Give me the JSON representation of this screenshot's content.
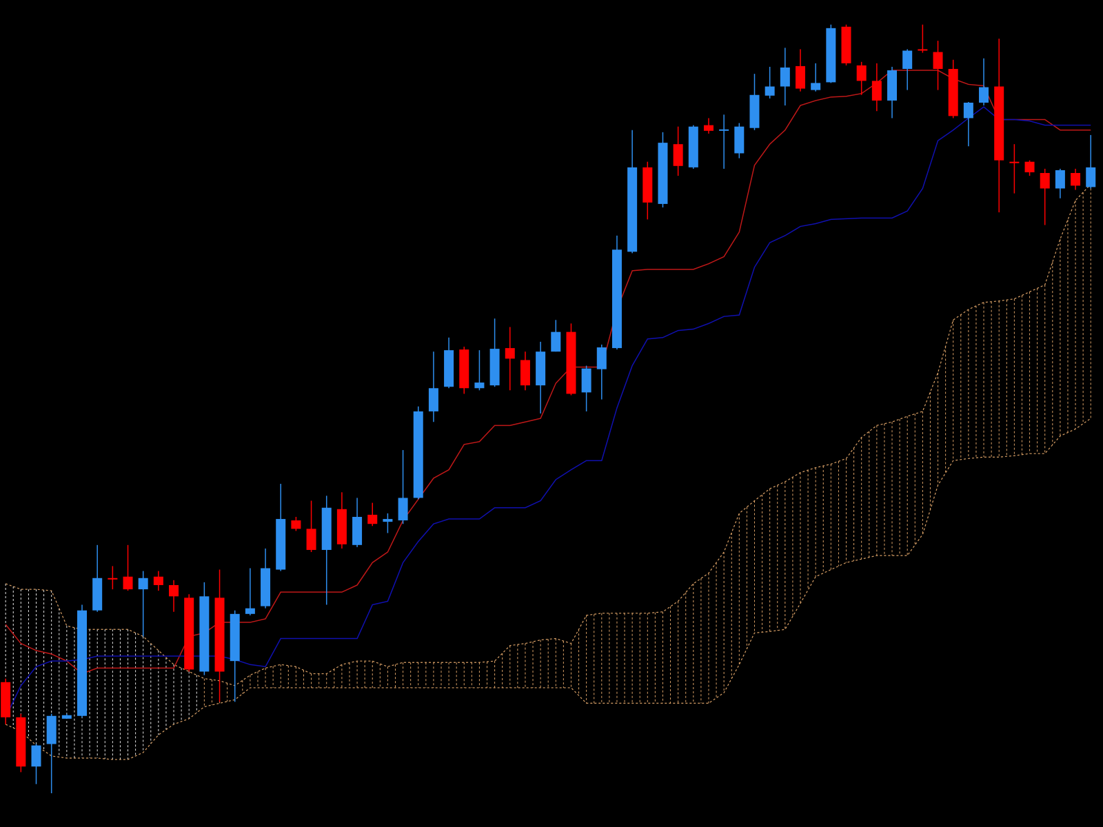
{
  "chart_data": {
    "type": "candlestick",
    "categories": [
      null,
      null,
      null,
      null,
      null,
      null,
      null,
      null,
      null,
      null,
      null,
      null,
      null,
      null,
      null,
      null,
      null,
      null,
      null,
      null,
      null,
      null,
      null,
      null,
      null,
      null,
      null,
      null,
      null,
      null,
      null,
      null,
      null,
      null,
      null,
      null,
      null,
      null,
      null,
      null,
      null,
      null,
      null,
      null,
      null,
      null,
      null,
      null,
      null,
      null,
      null,
      null,
      null,
      null,
      null,
      null,
      null,
      null,
      null,
      null,
      null,
      null,
      null,
      null,
      null,
      null,
      null,
      null,
      null,
      null,
      null,
      null
    ],
    "ylim": [
      0,
      1176
    ],
    "up_color": "#2e8ff0",
    "down_color": "#ff0000",
    "open": [
      206,
      156,
      86,
      118,
      154,
      158,
      308,
      354,
      356,
      338,
      356,
      344,
      326,
      221,
      326,
      236,
      303,
      314,
      366,
      436,
      424,
      394,
      452,
      401,
      444,
      434,
      436,
      468,
      591,
      626,
      679,
      624,
      628,
      681,
      664,
      628,
      676,
      704,
      618,
      651,
      681,
      818,
      938,
      886,
      971,
      938,
      998,
      990,
      958,
      994,
      1040,
      1053,
      1082,
      1048,
      1059,
      1138,
      1083,
      1061,
      1033,
      1078,
      1106,
      1102,
      1078,
      1008,
      1030,
      1053,
      946,
      946,
      930,
      908,
      930,
      910
    ],
    "high": [
      211,
      161,
      118,
      161,
      161,
      316,
      401,
      371,
      401,
      364,
      364,
      351,
      331,
      348,
      366,
      308,
      368,
      396,
      488,
      441,
      464,
      471,
      476,
      468,
      461,
      446,
      536,
      598,
      676,
      696,
      683,
      678,
      723,
      711,
      676,
      690,
      721,
      716,
      656,
      686,
      841,
      991,
      946,
      988,
      996,
      998,
      1008,
      1013,
      1001,
      1071,
      1081,
      1108,
      1106,
      1086,
      1141,
      1141,
      1088,
      1086,
      1081,
      1106,
      1141,
      1118,
      1091,
      1031,
      1093,
      1121,
      971,
      948,
      936,
      936,
      936,
      984
    ],
    "low": [
      146,
      78,
      61,
      48,
      154,
      156,
      306,
      338,
      336,
      271,
      336,
      306,
      221,
      216,
      178,
      178,
      301,
      311,
      364,
      421,
      391,
      316,
      396,
      398,
      428,
      418,
      431,
      466,
      576,
      624,
      616,
      621,
      626,
      621,
      621,
      588,
      676,
      614,
      591,
      608,
      679,
      816,
      864,
      881,
      926,
      936,
      986,
      936,
      951,
      991,
      1036,
      1026,
      1046,
      1046,
      1058,
      1083,
      1041,
      1018,
      1008,
      1048,
      1101,
      1048,
      1008,
      968,
      1026,
      874,
      901,
      926,
      856,
      894,
      906,
      908
    ],
    "close": [
      156,
      86,
      116,
      158,
      159,
      308,
      354,
      352,
      338,
      354,
      344,
      328,
      224,
      328,
      221,
      303,
      311,
      368,
      438,
      424,
      394,
      454,
      402,
      441,
      431,
      438,
      468,
      591,
      624,
      678,
      624,
      632,
      680,
      666,
      628,
      676,
      704,
      616,
      652,
      682,
      821,
      938,
      888,
      973,
      940,
      996,
      990,
      992,
      996,
      1041,
      1053,
      1080,
      1050,
      1058,
      1136,
      1086,
      1061,
      1033,
      1076,
      1104,
      1104,
      1078,
      1011,
      1030,
      1052,
      948,
      944,
      931,
      908,
      934,
      912,
      938
    ],
    "lines": [
      {
        "color": "#c01818",
        "values": [
          288,
          261,
          251,
          246,
          236,
          218,
          226,
          226,
          226,
          226,
          226,
          226,
          271,
          276,
          291,
          291,
          291,
          296,
          334,
          334,
          334,
          334,
          334,
          344,
          376,
          391,
          436,
          466,
          496,
          508,
          544,
          548,
          571,
          571,
          576,
          581,
          631,
          654,
          654,
          654,
          736,
          791,
          793,
          793,
          793,
          793,
          801,
          811,
          846,
          941,
          971,
          991,
          1026,
          1033,
          1038,
          1039,
          1043,
          1058,
          1076,
          1076,
          1076,
          1076,
          1064,
          1056,
          1054,
          1006,
          1006,
          1006,
          1006,
          991,
          991,
          991
        ]
      },
      {
        "color": "#1010b0",
        "values": [
          156,
          201,
          228,
          236,
          236,
          238,
          243,
          243,
          243,
          243,
          243,
          243,
          243,
          243,
          243,
          238,
          231,
          228,
          268,
          268,
          268,
          268,
          268,
          268,
          316,
          321,
          376,
          406,
          431,
          438,
          438,
          438,
          454,
          454,
          454,
          464,
          494,
          508,
          521,
          521,
          596,
          656,
          694,
          696,
          706,
          708,
          716,
          726,
          728,
          796,
          831,
          841,
          854,
          858,
          864,
          865,
          866,
          866,
          866,
          876,
          908,
          976,
          991,
          1008,
          1024,
          1006,
          1006,
          1004,
          998,
          998,
          998,
          998
        ]
      }
    ],
    "cloud": {
      "line_color": "#d9a066",
      "upper": [
        346,
        338,
        338,
        336,
        286,
        281,
        281,
        281,
        281,
        271,
        251,
        231,
        221,
        211,
        208,
        201,
        216,
        226,
        231,
        228,
        218,
        218,
        231,
        236,
        236,
        228,
        234,
        234,
        234,
        234,
        234,
        234,
        236,
        258,
        261,
        266,
        268,
        261,
        301,
        304,
        304,
        304,
        304,
        306,
        321,
        346,
        361,
        391,
        446,
        464,
        481,
        491,
        504,
        511,
        516,
        524,
        554,
        571,
        576,
        584,
        591,
        646,
        721,
        736,
        746,
        748,
        751,
        761,
        771,
        836,
        891,
        914
      ],
      "lower": [
        146,
        136,
        116,
        101,
        98,
        98,
        98,
        96,
        96,
        106,
        131,
        146,
        154,
        171,
        176,
        181,
        198,
        198,
        198,
        198,
        198,
        198,
        198,
        198,
        198,
        198,
        198,
        198,
        198,
        198,
        198,
        198,
        198,
        198,
        198,
        198,
        198,
        198,
        176,
        176,
        176,
        176,
        176,
        176,
        176,
        176,
        176,
        191,
        231,
        276,
        278,
        281,
        318,
        356,
        366,
        376,
        381,
        386,
        386,
        386,
        416,
        486,
        521,
        524,
        526,
        526,
        528,
        531,
        531,
        556,
        566,
        581
      ],
      "colors": [
        "#e8e8e8",
        "#e8e8e8",
        "#e8e8e8",
        "#e8e8e8",
        "#e8e8e8",
        "#e8e8e8",
        "#e8e8e8",
        "#e8e8e8",
        "#e8e8e8",
        "#e8e8e8",
        "#e8e8e8",
        "#e8e8e8",
        "#e8e8e8",
        "#d9a066",
        "#d9a066",
        "#d9a066",
        "#d9a066",
        "#d9a066",
        "#d9a066",
        "#d9a066",
        "#d9a066",
        "#d9a066",
        "#d9a066",
        "#d9a066",
        "#d9a066",
        "#d9a066",
        "#d9a066",
        "#d9a066",
        "#d9a066",
        "#d9a066",
        "#d9a066",
        "#d9a066",
        "#d9a066",
        "#d9a066",
        "#d9a066",
        "#d9a066",
        "#d9a066",
        "#d9a066",
        "#d9a066",
        "#d9a066",
        "#d9a066",
        "#d9a066",
        "#d9a066",
        "#d9a066",
        "#d9a066",
        "#d9a066",
        "#d9a066",
        "#d9a066",
        "#d9a066",
        "#d9a066",
        "#d9a066",
        "#d9a066",
        "#d9a066",
        "#d9a066",
        "#d9a066",
        "#d9a066",
        "#d9a066",
        "#d9a066",
        "#d9a066",
        "#d9a066",
        "#d9a066",
        "#d9a066",
        "#d9a066",
        "#d9a066",
        "#d9a066",
        "#d9a066",
        "#d9a066",
        "#d9a066",
        "#d9a066",
        "#d9a066",
        "#d9a066",
        "#d9a066"
      ]
    }
  }
}
